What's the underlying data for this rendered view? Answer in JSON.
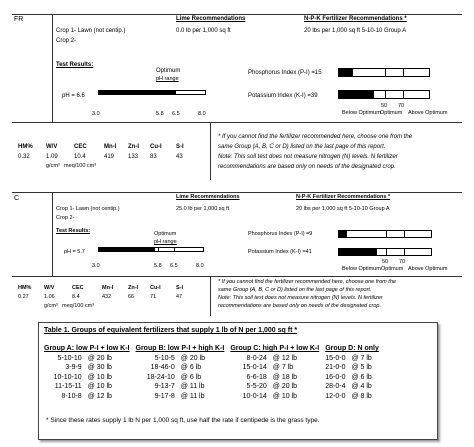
{
  "report1": {
    "tab": "FR",
    "lime_header": "Lime Recommendations",
    "npk_header": "N-P-K Fertilizer Recommendations *",
    "crop1": "Crop 1-  Lawn (not centip.)",
    "crop2": "Crop 2-",
    "lime_value": "0.0 lb per 1,000 sq ft",
    "npk_value": "20 lbs per 1,000 sq ft 5-10-10 Group A",
    "test_results": "Test Results:",
    "optimum": "Optimum",
    "ph_range": "pH range",
    "ph_label": "pH = 6.6",
    "ph_ticks": [
      "3.0",
      "5.8",
      "6.5",
      "8.0"
    ],
    "p_label": "Phosphorus Index (P-I) =15",
    "k_label": "Potassium Index (K-I) =39",
    "p_index": 15,
    "k_index": 39,
    "ph_value": 6.6,
    "scale_low": "Below Optimum",
    "scale_opt": "Optimum",
    "scale_high": "Above Optimum",
    "scale_50": "50",
    "scale_70": "70",
    "headers": [
      "HM%",
      "W/V",
      "CEC",
      "Mn-I",
      "Zn-I",
      "Cu-I",
      "S-I"
    ],
    "values": [
      "0.32",
      "1.09",
      "10.4",
      "419",
      "133",
      "83",
      "43"
    ],
    "units": [
      "g/cm³",
      "meq/100 cm³"
    ],
    "note1": "* If you cannot find the fertilizer recommended here, choose one from the",
    "note2": "same Group (A, B, C or D) listed on the last page of this report.",
    "note3": "Note:   This soil test does not measure nitrogen (N) levels. N fertilizer",
    "note4": "recommendations are based only on needs of the designated crop."
  },
  "report2": {
    "tab": "C",
    "lime_header": "Lime Recommendations",
    "npk_header": "N-P-K Fertilizer Recommendations *",
    "crop1": "Crop 1-  Lawn (not centip.)",
    "crop2": "Crop 2-",
    "lime_value": "25.0 lb per 1,000 sq ft",
    "npk_value": "20 lbs per 1,000 sq ft 5-10-10 Group A",
    "test_results": "Test Results:",
    "optimum": "Optimum",
    "ph_range": "pH range",
    "ph_label": "pH = 5.7",
    "ph_ticks": [
      "3.0",
      "5.8",
      "6.5",
      "8.0"
    ],
    "p_label": "Phosphorus Index (P-I) =9",
    "k_label": "Potassium Index (K-I) =41",
    "p_index": 9,
    "k_index": 41,
    "ph_value": 5.7,
    "scale_low": "Below Optimum",
    "scale_opt": "Optimum",
    "scale_high": "Above Optimum",
    "scale_50": "50",
    "scale_70": "70",
    "headers": [
      "HM%",
      "W/V",
      "CEC",
      "Mn-I",
      "Zn-I",
      "Cu-I",
      "S-I"
    ],
    "values": [
      "0.27",
      "1.06",
      "8.4",
      "432",
      "66",
      "71",
      "47"
    ],
    "units": [
      "g/cm³",
      "meq/100 cm³"
    ],
    "note1": "* If you cannot find the fertilizer recommended here, choose one from the",
    "note2": "same Group (A, B, C or D) listed on the last page of this report.",
    "note3": "Note:   This soil test does not measure nitrogen (N) levels. N fertilizer",
    "note4": "recommendations are based only on needs of the designated crop."
  },
  "table": {
    "title": "Table 1. Groups of equivalent fertilizers that supply 1 lb of N per 1,000 sq ft *",
    "columns": [
      "Group A: low P-I + low K-I",
      "Group B: low P-I + high K-I",
      "Group C: high P-I + low K-I",
      "Group D: N only"
    ],
    "rows": [
      [
        [
          "5-10-10",
          "@ 20 lb"
        ],
        [
          "5-10-5",
          "@ 20 lb"
        ],
        [
          "8-0-24",
          "@ 12 lb"
        ],
        [
          "15-0-0",
          "@ 7 lb"
        ]
      ],
      [
        [
          "3-9-9",
          "@ 30 lb"
        ],
        [
          "18-46-0",
          "@ 6 lb"
        ],
        [
          "15-0-14",
          "@ 7 lb"
        ],
        [
          "21-0-0",
          "@ 5 lb"
        ]
      ],
      [
        [
          "10-10-10",
          "@ 10 lb"
        ],
        [
          "18-24-10",
          "@ 6 lb"
        ],
        [
          "6-6-18",
          "@ 18 lb"
        ],
        [
          "16-0-0",
          "@ 6 lb"
        ]
      ],
      [
        [
          "11-15-11",
          "@ 10 lb"
        ],
        [
          "9-13-7",
          "@ 11 lb"
        ],
        [
          "5-5-20",
          "@ 20 lb"
        ],
        [
          "28-0-4",
          "@ 4 lb"
        ]
      ],
      [
        [
          "8-10-8",
          "@ 12 lb"
        ],
        [
          "9-17-8",
          "@ 11 lb"
        ],
        [
          "10-0-14",
          "@ 10 lb"
        ],
        [
          "12-0-0",
          "@ 8 lb"
        ]
      ]
    ],
    "footnote": "* Since these rates supply 1 lb N per 1,000 sq ft, use half the rate if centipede is the grass type."
  }
}
